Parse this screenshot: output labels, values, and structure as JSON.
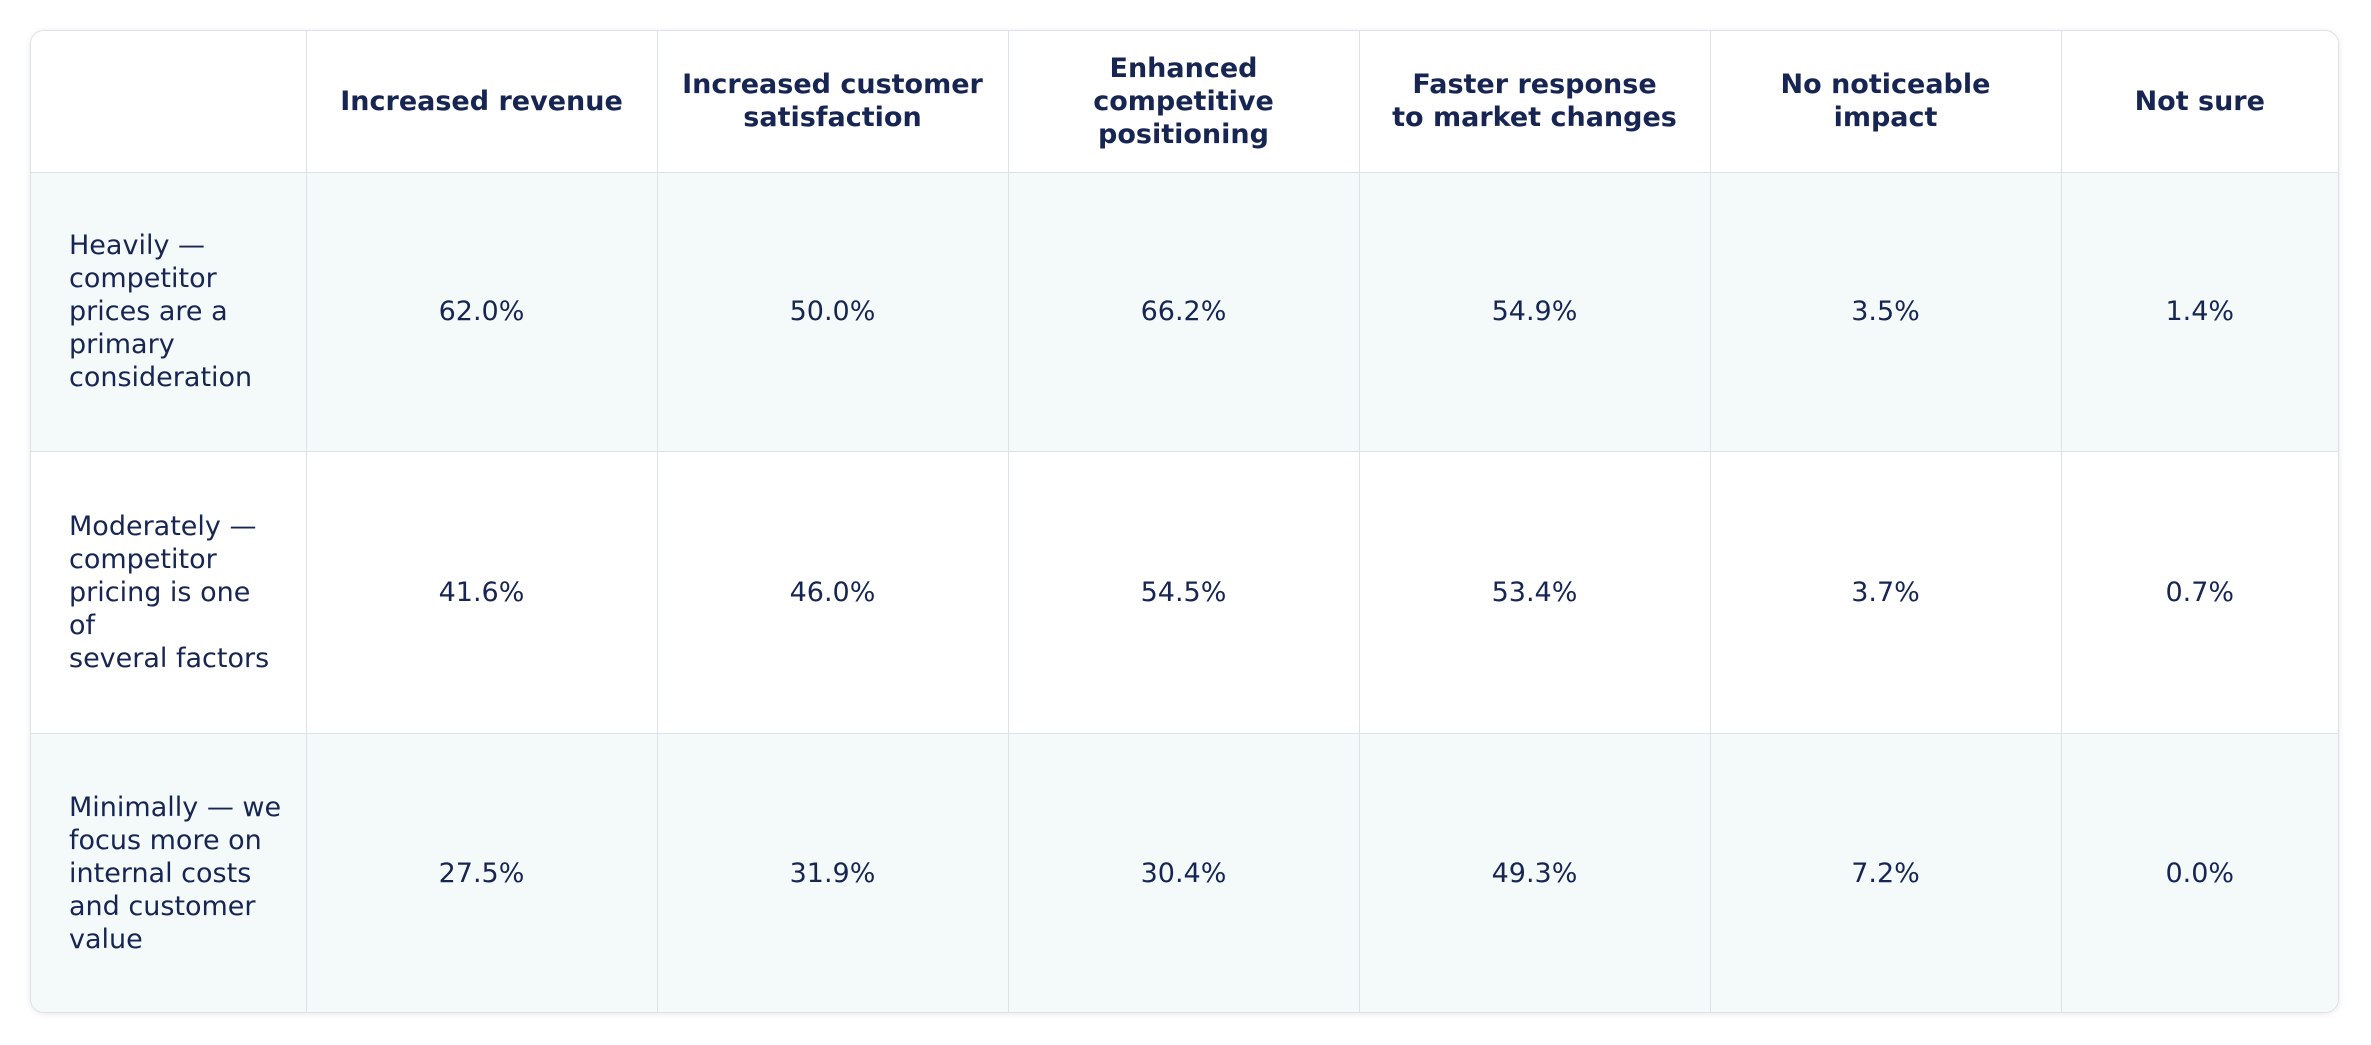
{
  "chart_data": {
    "type": "table",
    "title": "",
    "columns": [
      "",
      "Increased revenue",
      "Increased customer satisfaction",
      "Enhanced competitive positioning",
      "Faster response to market changes",
      "No noticeable impact",
      "Not sure"
    ],
    "column_lines": [
      [
        ""
      ],
      [
        "Increased revenue"
      ],
      [
        "Increased customer",
        "satisfaction"
      ],
      [
        "Enhanced competitive",
        "positioning"
      ],
      [
        "Faster response",
        "to market changes"
      ],
      [
        "No noticeable impact"
      ],
      [
        "Not sure"
      ]
    ],
    "rows": [
      {
        "label": "Heavily — competitor prices are a primary consideration",
        "label_lines": [
          "Heavily —",
          "competitor",
          "prices are a",
          "primary",
          "consideration"
        ],
        "values": [
          "62.0%",
          "50.0%",
          "66.2%",
          "54.9%",
          "3.5%",
          "1.4%"
        ]
      },
      {
        "label": "Moderately — competitor pricing is one of several factors",
        "label_lines": [
          "Moderately —",
          "competitor",
          "pricing is one of",
          "several factors"
        ],
        "values": [
          "41.6%",
          "46.0%",
          "54.5%",
          "53.4%",
          "3.7%",
          "0.7%"
        ]
      },
      {
        "label": "Minimally — we focus more on internal costs and customer value",
        "label_lines": [
          "Minimally — we",
          "focus more on",
          "internal costs",
          "and customer",
          "value"
        ],
        "values": [
          "27.5%",
          "31.9%",
          "30.4%",
          "49.3%",
          "7.2%",
          "0.0%"
        ]
      }
    ],
    "colors": {
      "text": "#172553",
      "border": "#dde2e8",
      "shaded_row": "#f4f9fa",
      "plain_row": "#ffffff"
    }
  }
}
